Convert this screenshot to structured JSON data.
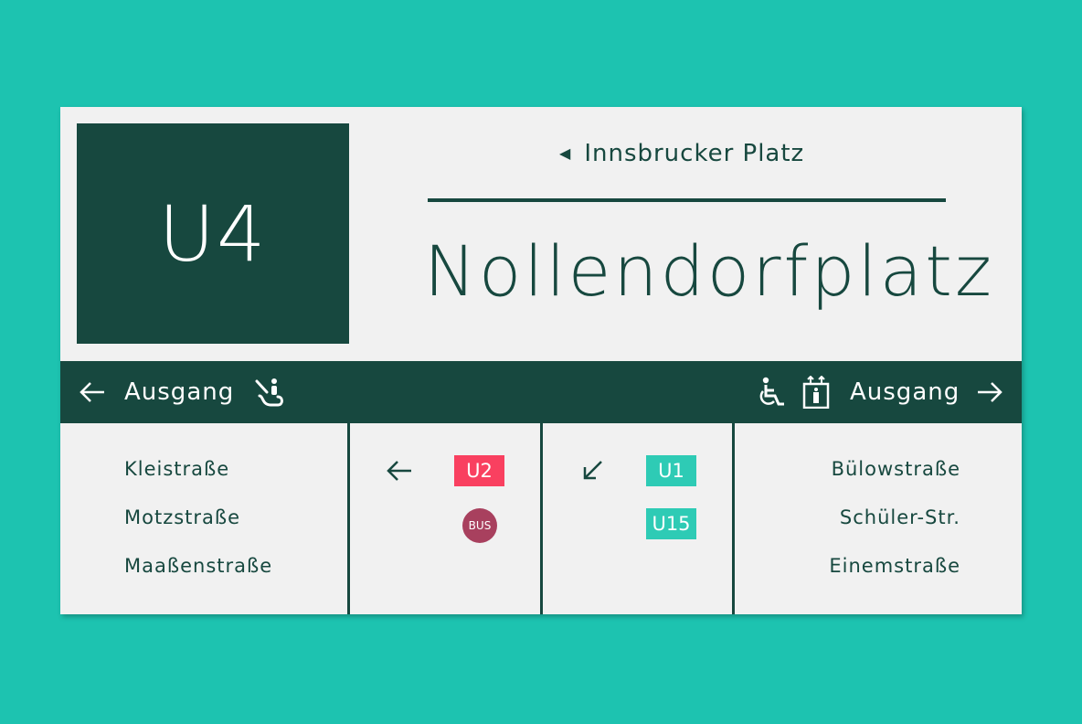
{
  "line": "U4",
  "direction": "Innsbrucker Platz",
  "station": "Nollendorfplatz",
  "exit_left": {
    "label": "Ausgang",
    "icons": [
      "arrow-left-icon",
      "escalator-icon"
    ]
  },
  "exit_right": {
    "label": "Ausgang",
    "icons": [
      "wheelchair-icon",
      "elevator-icon",
      "arrow-right-icon"
    ]
  },
  "left_streets": [
    "Kleistraße",
    "Motzstraße",
    "Maaßenstraße"
  ],
  "right_streets": [
    "Bülowstraße",
    "Schüler-Str.",
    "Einemstraße"
  ],
  "connections_left": {
    "arrow": "arrow-left-icon",
    "lines": [
      {
        "label": "U2",
        "color": "#f94060"
      },
      {
        "label": "BUS",
        "color": "#a8405e"
      }
    ]
  },
  "connections_right": {
    "arrow": "arrow-down-left-icon",
    "lines": [
      {
        "label": "U1",
        "color": "#2ecbb5"
      },
      {
        "label": "U15",
        "color": "#2ecbb5"
      }
    ]
  },
  "colors": {
    "background": "#1dc3b0",
    "primary": "#17483f",
    "panel": "#f1f1f1"
  }
}
